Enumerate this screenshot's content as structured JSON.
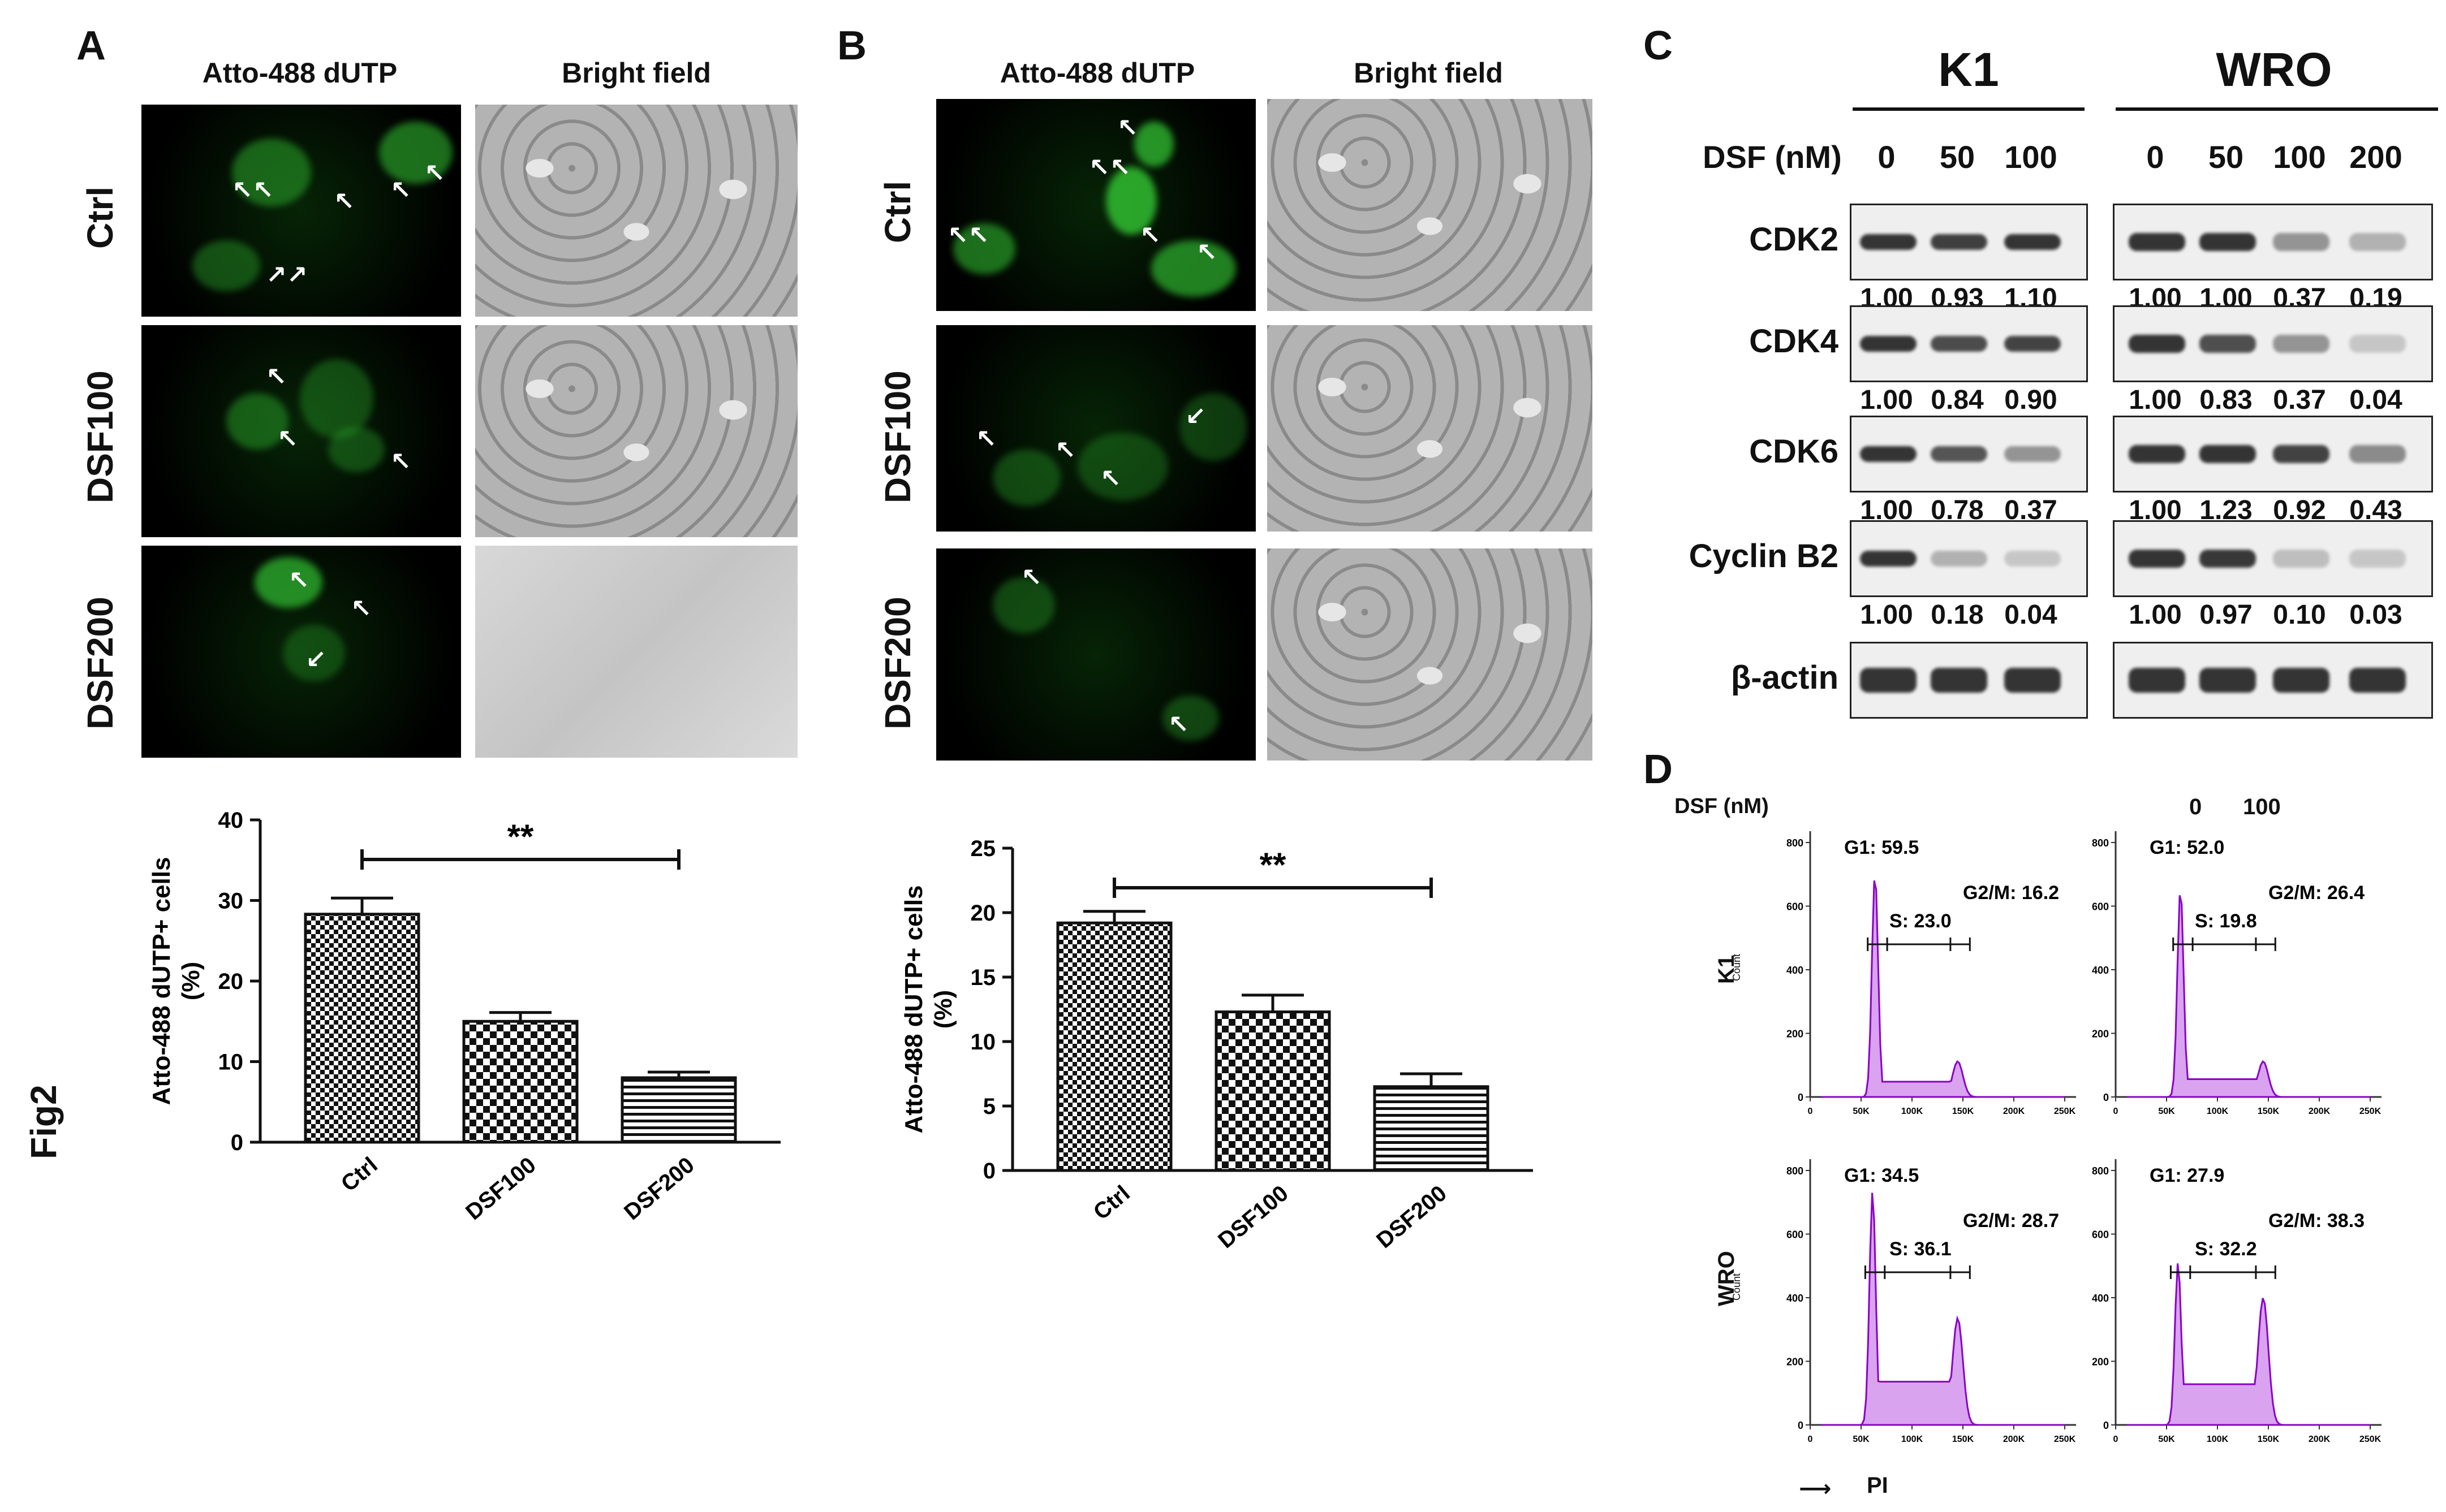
{
  "side_label": "Fig2",
  "panel_letters": {
    "a": "A",
    "b": "B",
    "c": "C",
    "d": "D"
  },
  "panelA": {
    "col1": "Atto-488 dUTP",
    "col2": "Bright field",
    "rows": [
      "Ctrl",
      "DSF100",
      "DSF200"
    ]
  },
  "panelB": {
    "col1": "Atto-488 dUTP",
    "col2": "Bright field",
    "rows": [
      "Ctrl",
      "DSF100",
      "DSF200"
    ]
  },
  "chart_data": [
    {
      "type": "bar",
      "categories": [
        "Ctrl",
        "DSF100",
        "DSF200"
      ],
      "values": [
        28.3,
        15.0,
        8.0
      ],
      "errors": [
        2.0,
        1.1,
        0.7
      ],
      "ylabel": "Atto-488 dUTP+ cells\n(%)",
      "ylim": [
        0,
        40
      ],
      "yticks": [
        "0",
        "10",
        "20",
        "30",
        "40"
      ],
      "significance": "**"
    },
    {
      "type": "bar",
      "categories": [
        "Ctrl",
        "DSF100",
        "DSF200"
      ],
      "values": [
        19.2,
        12.3,
        6.5
      ],
      "errors": [
        0.9,
        1.3,
        1.0
      ],
      "ylabel": "Atto-488 dUTP+ cells\n(%)",
      "ylim": [
        0,
        25
      ],
      "yticks": [
        "0",
        "5",
        "10",
        "15",
        "20",
        "25"
      ],
      "significance": "**"
    }
  ],
  "panelC": {
    "group1": "K1",
    "group2": "WRO",
    "dsf_label": "DSF (nM)",
    "k1_doses": [
      "0",
      "50",
      "100"
    ],
    "wro_doses": [
      "0",
      "50",
      "100",
      "200"
    ],
    "proteins": [
      {
        "name": "CDK2",
        "k1": [
          "1.00",
          "0.93",
          "1.10"
        ],
        "wro": [
          "1.00",
          "1.00",
          "0.37",
          "0.19"
        ]
      },
      {
        "name": "CDK4",
        "k1": [
          "1.00",
          "0.84",
          "0.90"
        ],
        "wro": [
          "1.00",
          "0.83",
          "0.37",
          "0.04"
        ]
      },
      {
        "name": "CDK6",
        "k1": [
          "1.00",
          "0.78",
          "0.37"
        ],
        "wro": [
          "1.00",
          "1.23",
          "0.92",
          "0.43"
        ]
      },
      {
        "name": "Cyclin B2",
        "k1": [
          "1.00",
          "0.18",
          "0.04"
        ],
        "wro": [
          "1.00",
          "0.97",
          "0.10",
          "0.03"
        ]
      }
    ],
    "loading": "β-actin"
  },
  "panelD": {
    "dsf_label": "DSF (nM)",
    "doses": [
      "0",
      "100"
    ],
    "rows": [
      "K1",
      "WRO"
    ],
    "count_label": "Count",
    "xlabel": "PI",
    "xticks": [
      "0",
      "50K",
      "100K",
      "150K",
      "200K",
      "250K"
    ],
    "yticks": [
      "0",
      "200",
      "400",
      "600",
      "800"
    ],
    "histograms": [
      {
        "g1": "G1: 59.5",
        "s": "S: 23.0",
        "g2m": "G2/M: 16.2"
      },
      {
        "g1": "G1: 52.0",
        "s": "S: 19.8",
        "g2m": "G2/M: 26.4"
      },
      {
        "g1": "G1: 34.5",
        "s": "S: 36.1",
        "g2m": "G2/M: 28.7"
      },
      {
        "g1": "G1: 27.9",
        "s": "S: 32.2",
        "g2m": "G2/M: 38.3"
      }
    ]
  }
}
